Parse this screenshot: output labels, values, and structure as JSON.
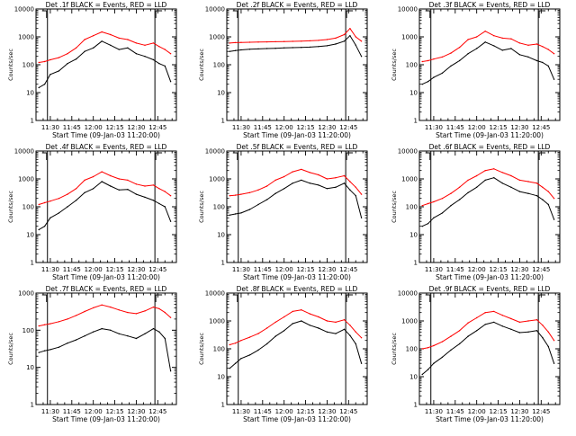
{
  "figure": {
    "start_time_label": "Start Time (09-Jan-03 11:20:00)",
    "ylabel": "Counts/sec",
    "legend_text": "BLACK = Events, RED = LLD",
    "colors": {
      "events": "#000000",
      "lld": "#ff0000",
      "axes": "#000000"
    }
  },
  "chart_data": [
    {
      "type": "line",
      "title": "Det .1f BLACK = Events, RED = LLD",
      "xlabel": "Start Time (09-Jan-03 11:20:00)",
      "ylabel": "Counts/sec",
      "y_scale": "log",
      "ylim": [
        1,
        10000
      ],
      "yticks": [
        "1",
        "10",
        "100",
        "1000",
        "10000"
      ],
      "xticks": [
        "11:30",
        "11:45",
        "12:00",
        "12:15",
        "12:30",
        "12:45"
      ],
      "xlim": [
        "11:20",
        "12:58"
      ],
      "vlines": [
        "11:28",
        "12:43"
      ],
      "x": [
        "11:22",
        "11:26",
        "11:30",
        "11:36",
        "11:42",
        "11:48",
        "11:54",
        "12:00",
        "12:06",
        "12:12",
        "12:18",
        "12:24",
        "12:30",
        "12:36",
        "12:42",
        "12:46",
        "12:50",
        "12:54"
      ],
      "series": [
        {
          "name": "Events",
          "color": "#000000",
          "values": [
            15,
            20,
            45,
            60,
            110,
            160,
            300,
            400,
            700,
            500,
            350,
            400,
            250,
            200,
            150,
            110,
            90,
            25
          ]
        },
        {
          "name": "LLD",
          "color": "#ff0000",
          "values": [
            120,
            130,
            150,
            180,
            250,
            400,
            800,
            1100,
            1500,
            1200,
            900,
            800,
            600,
            500,
            600,
            450,
            350,
            250
          ]
        }
      ]
    },
    {
      "type": "line",
      "title": "Det .2f BLACK = Events, RED = LLD",
      "xlabel": "Start Time (09-Jan-03 11:20:00)",
      "ylabel": "Counts/sec",
      "y_scale": "log",
      "ylim": [
        1,
        10000
      ],
      "yticks": [
        "1",
        "10",
        "100",
        "1000",
        "10000"
      ],
      "xticks": [
        "11:30",
        "11:45",
        "12:00",
        "12:15",
        "12:30",
        "12:45"
      ],
      "xlim": [
        "11:20",
        "12:58"
      ],
      "vlines": [
        "11:28",
        "12:43"
      ],
      "x": [
        "11:22",
        "11:26",
        "11:30",
        "11:36",
        "11:42",
        "11:48",
        "11:54",
        "12:00",
        "12:06",
        "12:12",
        "12:18",
        "12:24",
        "12:30",
        "12:36",
        "12:42",
        "12:46",
        "12:50",
        "12:54"
      ],
      "series": [
        {
          "name": "Events",
          "color": "#000000",
          "values": [
            300,
            320,
            340,
            360,
            370,
            380,
            390,
            400,
            410,
            420,
            430,
            450,
            480,
            550,
            700,
            1100,
            500,
            200
          ]
        },
        {
          "name": "LLD",
          "color": "#ff0000",
          "values": [
            600,
            620,
            630,
            640,
            650,
            660,
            670,
            680,
            690,
            700,
            720,
            750,
            800,
            900,
            1200,
            2000,
            1000,
            700
          ]
        }
      ]
    },
    {
      "type": "line",
      "title": "Det .3f BLACK = Events, RED = LLD",
      "xlabel": "Start Time (09-Jan-03 11:20:00)",
      "ylabel": "Counts/sec",
      "y_scale": "log",
      "ylim": [
        1,
        10000
      ],
      "yticks": [
        "1",
        "10",
        "100",
        "1000",
        "10000"
      ],
      "xticks": [
        "11:30",
        "11:45",
        "12:00",
        "12:15",
        "12:30",
        "12:45"
      ],
      "xlim": [
        "11:20",
        "12:58"
      ],
      "vlines": [
        "11:28",
        "12:43"
      ],
      "x": [
        "11:22",
        "11:26",
        "11:30",
        "11:36",
        "11:42",
        "11:48",
        "11:54",
        "12:00",
        "12:06",
        "12:12",
        "12:18",
        "12:24",
        "12:30",
        "12:36",
        "12:42",
        "12:46",
        "12:50",
        "12:54"
      ],
      "series": [
        {
          "name": "Events",
          "color": "#000000",
          "values": [
            20,
            25,
            35,
            50,
            90,
            140,
            250,
            380,
            650,
            480,
            330,
            380,
            230,
            190,
            140,
            120,
            90,
            30
          ]
        },
        {
          "name": "LLD",
          "color": "#ff0000",
          "values": [
            130,
            140,
            160,
            190,
            260,
            420,
            800,
            1000,
            1600,
            1100,
            900,
            850,
            600,
            500,
            550,
            450,
            350,
            250
          ]
        }
      ]
    },
    {
      "type": "line",
      "title": "Det .4f BLACK = Events, RED = LLD",
      "xlabel": "Start Time (09-Jan-03 11:20:00)",
      "ylabel": "Counts/sec",
      "y_scale": "log",
      "ylim": [
        1,
        10000
      ],
      "yticks": [
        "1",
        "10",
        "100",
        "1000",
        "10000"
      ],
      "xticks": [
        "11:30",
        "11:45",
        "12:00",
        "12:15",
        "12:30",
        "12:45"
      ],
      "xlim": [
        "11:20",
        "12:58"
      ],
      "vlines": [
        "11:28",
        "12:43"
      ],
      "x": [
        "11:22",
        "11:26",
        "11:30",
        "11:36",
        "11:42",
        "11:48",
        "11:54",
        "12:00",
        "12:06",
        "12:12",
        "12:18",
        "12:24",
        "12:30",
        "12:36",
        "12:42",
        "12:46",
        "12:50",
        "12:54"
      ],
      "series": [
        {
          "name": "Events",
          "color": "#000000",
          "values": [
            15,
            20,
            40,
            60,
            100,
            170,
            320,
            450,
            800,
            550,
            400,
            420,
            280,
            220,
            170,
            130,
            100,
            30
          ]
        },
        {
          "name": "LLD",
          "color": "#ff0000",
          "values": [
            120,
            140,
            160,
            200,
            280,
            450,
            900,
            1200,
            1800,
            1300,
            1000,
            900,
            650,
            550,
            600,
            450,
            350,
            250
          ]
        }
      ]
    },
    {
      "type": "line",
      "title": "Det .5f BLACK = Events, RED = LLD",
      "xlabel": "Start Time (09-Jan-03 11:20:00)",
      "ylabel": "Counts/sec",
      "y_scale": "log",
      "ylim": [
        1,
        10000
      ],
      "yticks": [
        "1",
        "10",
        "100",
        "1000",
        "10000"
      ],
      "xticks": [
        "11:30",
        "11:45",
        "12:00",
        "12:15",
        "12:30",
        "12:45"
      ],
      "xlim": [
        "11:20",
        "12:58"
      ],
      "vlines": [
        "11:28",
        "12:43"
      ],
      "x": [
        "11:22",
        "11:26",
        "11:30",
        "11:36",
        "11:42",
        "11:48",
        "11:54",
        "12:00",
        "12:06",
        "12:12",
        "12:18",
        "12:24",
        "12:30",
        "12:36",
        "12:42",
        "12:46",
        "12:50",
        "12:54"
      ],
      "series": [
        {
          "name": "Events",
          "color": "#000000",
          "values": [
            50,
            55,
            60,
            80,
            120,
            180,
            300,
            450,
            700,
            900,
            700,
            600,
            450,
            500,
            700,
            400,
            250,
            40
          ]
        },
        {
          "name": "LLD",
          "color": "#ff0000",
          "values": [
            250,
            260,
            280,
            320,
            400,
            550,
            900,
            1200,
            1800,
            2200,
            1700,
            1400,
            1000,
            1100,
            1300,
            800,
            500,
            280
          ]
        }
      ]
    },
    {
      "type": "line",
      "title": "Det .6f BLACK = Events, RED = LLD",
      "xlabel": "Start Time (09-Jan-03 11:20:00)",
      "ylabel": "Counts/sec",
      "y_scale": "log",
      "ylim": [
        1,
        10000
      ],
      "yticks": [
        "1",
        "10",
        "100",
        "1000",
        "10000"
      ],
      "xticks": [
        "11:30",
        "11:45",
        "12:00",
        "12:15",
        "12:30",
        "12:45"
      ],
      "xlim": [
        "11:20",
        "12:58"
      ],
      "vlines": [
        "11:28",
        "12:43"
      ],
      "x": [
        "11:22",
        "11:26",
        "11:30",
        "11:36",
        "11:42",
        "11:48",
        "11:54",
        "12:00",
        "12:06",
        "12:12",
        "12:18",
        "12:24",
        "12:30",
        "12:36",
        "12:42",
        "12:46",
        "12:50",
        "12:54"
      ],
      "series": [
        {
          "name": "Events",
          "color": "#000000",
          "values": [
            20,
            25,
            40,
            60,
            110,
            180,
            320,
            500,
            900,
            1100,
            700,
            500,
            350,
            300,
            250,
            180,
            120,
            35
          ]
        },
        {
          "name": "LLD",
          "color": "#ff0000",
          "values": [
            110,
            130,
            150,
            200,
            300,
            500,
            900,
            1300,
            2000,
            2300,
            1700,
            1300,
            900,
            800,
            700,
            500,
            350,
            200
          ]
        }
      ]
    },
    {
      "type": "line",
      "title": "Det .7f BLACK = Events, RED = LLD",
      "xlabel": "Start Time (09-Jan-03 11:20:00)",
      "ylabel": "Counts/sec",
      "y_scale": "log",
      "ylim": [
        1,
        1000
      ],
      "yticks": [
        "1",
        "10",
        "100",
        "1000"
      ],
      "xticks": [
        "11:30",
        "11:45",
        "12:00",
        "12:15",
        "12:30",
        "12:45"
      ],
      "xlim": [
        "11:20",
        "12:58"
      ],
      "vlines": [
        "11:28",
        "12:43"
      ],
      "x": [
        "11:22",
        "11:26",
        "11:30",
        "11:36",
        "11:42",
        "11:48",
        "11:54",
        "12:00",
        "12:06",
        "12:12",
        "12:18",
        "12:24",
        "12:30",
        "12:36",
        "12:42",
        "12:46",
        "12:50",
        "12:54"
      ],
      "series": [
        {
          "name": "Events",
          "color": "#000000",
          "values": [
            25,
            28,
            30,
            35,
            45,
            55,
            70,
            90,
            110,
            100,
            80,
            70,
            60,
            80,
            110,
            90,
            60,
            8
          ]
        },
        {
          "name": "LLD",
          "color": "#ff0000",
          "values": [
            130,
            140,
            150,
            170,
            200,
            250,
            320,
            400,
            480,
            420,
            350,
            300,
            280,
            330,
            420,
            380,
            300,
            220
          ]
        }
      ]
    },
    {
      "type": "line",
      "title": "Det .8f BLACK = Events, RED = LLD",
      "xlabel": "Start Time (09-Jan-03 11:20:00)",
      "ylabel": "Counts/sec",
      "y_scale": "log",
      "ylim": [
        1,
        10000
      ],
      "yticks": [
        "1",
        "10",
        "100",
        "1000",
        "10000"
      ],
      "xticks": [
        "11:30",
        "11:45",
        "12:00",
        "12:15",
        "12:30",
        "12:45"
      ],
      "xlim": [
        "11:20",
        "12:58"
      ],
      "vlines": [
        "11:28",
        "12:43"
      ],
      "x": [
        "11:22",
        "11:26",
        "11:30",
        "11:36",
        "11:42",
        "11:48",
        "11:54",
        "12:00",
        "12:06",
        "12:12",
        "12:18",
        "12:24",
        "12:30",
        "12:36",
        "12:42",
        "12:46",
        "12:50",
        "12:54"
      ],
      "series": [
        {
          "name": "Events",
          "color": "#000000",
          "values": [
            20,
            30,
            45,
            60,
            90,
            150,
            280,
            450,
            800,
            1000,
            700,
            550,
            400,
            350,
            500,
            300,
            150,
            30
          ]
        },
        {
          "name": "LLD",
          "color": "#ff0000",
          "values": [
            140,
            160,
            200,
            260,
            350,
            550,
            900,
            1400,
            2200,
            2500,
            1800,
            1400,
            1000,
            900,
            1100,
            700,
            400,
            250
          ]
        }
      ]
    },
    {
      "type": "line",
      "title": "Det .9f BLACK = Events, RED = LLD",
      "xlabel": "Start Time (09-Jan-03 11:20:00)",
      "ylabel": "Counts/sec",
      "y_scale": "log",
      "ylim": [
        1,
        10000
      ],
      "yticks": [
        "1",
        "10",
        "100",
        "1000",
        "10000"
      ],
      "xticks": [
        "11:30",
        "11:45",
        "12:00",
        "12:15",
        "12:30",
        "12:45"
      ],
      "xlim": [
        "11:20",
        "12:58"
      ],
      "vlines": [
        "11:28",
        "12:43"
      ],
      "x": [
        "11:22",
        "11:26",
        "11:30",
        "11:36",
        "11:42",
        "11:48",
        "11:54",
        "12:00",
        "12:06",
        "12:12",
        "12:18",
        "12:24",
        "12:30",
        "12:36",
        "12:42",
        "12:46",
        "12:50",
        "12:54"
      ],
      "series": [
        {
          "name": "Events",
          "color": "#000000",
          "values": [
            12,
            18,
            30,
            50,
            90,
            150,
            280,
            450,
            750,
            900,
            650,
            500,
            380,
            400,
            450,
            250,
            120,
            30
          ]
        },
        {
          "name": "LLD",
          "color": "#ff0000",
          "values": [
            100,
            110,
            130,
            180,
            280,
            450,
            850,
            1300,
            2000,
            2200,
            1600,
            1200,
            900,
            1000,
            1100,
            700,
            400,
            200
          ]
        }
      ]
    }
  ]
}
